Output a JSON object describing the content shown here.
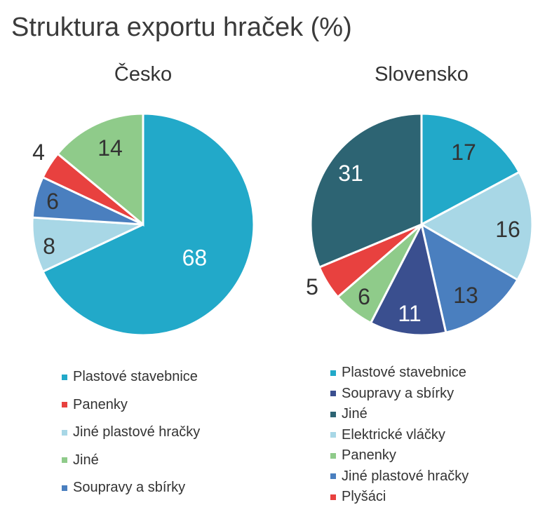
{
  "title": "Struktura exportu hraček (%)",
  "colors": {
    "plastove_stavebnice": "#22a9c9",
    "panenky": "#e8413f",
    "jine_plastove_hracky": "#a8d7e6",
    "jine": "#8fcb8a",
    "soupravy": "#4a7fbf",
    "jine_dark": "#2d6473",
    "soupravy_navy": "#3a4f8f",
    "elektricke_vlacky": "#a8d7e6",
    "panenky_green": "#8fcb8a",
    "jine_plastove_blue": "#4a7fbf",
    "plysaci": "#e8413f"
  },
  "chart_data": [
    {
      "type": "pie",
      "title": "Česko",
      "slices": [
        {
          "label": "Plastové stavebnice",
          "value": 68,
          "color": "#22a9c9",
          "text_color": "#ffffff"
        },
        {
          "label": "Jiné plastové hračky",
          "value": 8,
          "color": "#a8d7e6",
          "text_color": "#333333"
        },
        {
          "label": "Soupravy a sbírky",
          "value": 6,
          "color": "#4a7fbf",
          "text_color": "#333333"
        },
        {
          "label": "Panenky",
          "value": 4,
          "color": "#e8413f",
          "text_color": "#333333"
        },
        {
          "label": "Jiné",
          "value": 14,
          "color": "#8fcb8a",
          "text_color": "#333333"
        }
      ],
      "legend": [
        {
          "label": "Plastové stavebnice",
          "color": "#22a9c9"
        },
        {
          "label": "Panenky",
          "color": "#e8413f"
        },
        {
          "label": "Jiné plastové hračky",
          "color": "#a8d7e6"
        },
        {
          "label": "Jiné",
          "color": "#8fcb8a"
        },
        {
          "label": "Soupravy a sbírky",
          "color": "#4a7fbf"
        }
      ],
      "legend_position": "bottom"
    },
    {
      "type": "pie",
      "title": "Slovensko",
      "slices": [
        {
          "label": "Plastové stavebnice",
          "value": 17,
          "color": "#22a9c9",
          "text_color": "#333333"
        },
        {
          "label": "Elektrické vláčky",
          "value": 16,
          "color": "#a8d7e6",
          "text_color": "#333333"
        },
        {
          "label": "Jiné plastové hračky",
          "value": 13,
          "color": "#4a7fbf",
          "text_color": "#333333"
        },
        {
          "label": "Soupravy a sbírky",
          "value": 11,
          "color": "#3a4f8f",
          "text_color": "#ffffff"
        },
        {
          "label": "Panenky",
          "value": 6,
          "color": "#8fcb8a",
          "text_color": "#333333"
        },
        {
          "label": "Plyšáci",
          "value": 5,
          "color": "#e8413f",
          "text_color": "#333333"
        },
        {
          "label": "Jiné",
          "value": 31,
          "color": "#2d6473",
          "text_color": "#ffffff"
        }
      ],
      "legend": [
        {
          "label": "Plastové stavebnice",
          "color": "#22a9c9"
        },
        {
          "label": "Soupravy a sbírky",
          "color": "#3a4f8f"
        },
        {
          "label": "Jiné",
          "color": "#2d6473"
        },
        {
          "label": "Elektrické vláčky",
          "color": "#a8d7e6"
        },
        {
          "label": "Panenky",
          "color": "#8fcb8a"
        },
        {
          "label": "Jiné plastové hračky",
          "color": "#4a7fbf"
        },
        {
          "label": "Plyšáci",
          "color": "#e8413f"
        }
      ],
      "legend_position": "bottom"
    }
  ]
}
